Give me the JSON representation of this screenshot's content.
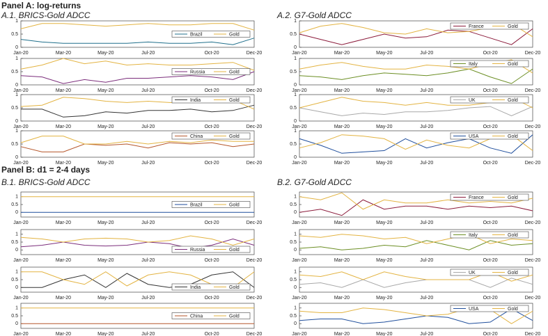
{
  "headings": {
    "panel_a": "Panel A: log-returns",
    "a1": "A.1. BRICS-Gold ADCC",
    "a2": "A.2. G7-Gold ADCC",
    "panel_b": "Panel B: d1 = 2-4 days",
    "b1": "B.1. BRICS-Gold ADCC",
    "b2": "B.2. G7-Gold ADCC"
  },
  "chart_data": [
    {
      "type": "line",
      "categories": [
        "Jan-20",
        null,
        "Mar-20",
        null,
        "May-20",
        null,
        "Jul-20",
        null,
        null,
        "Oct-20",
        null,
        "Dec-20"
      ],
      "ylim": [
        0,
        1
      ],
      "yticks": [
        0,
        0.5,
        1
      ],
      "legend": "center right",
      "series": [
        {
          "name": "Brazil",
          "color": "#1f6f8b",
          "values": [
            0.3,
            0.2,
            0.15,
            0.15,
            0.15,
            0.15,
            0.2,
            0.15,
            0.15,
            0.2,
            0.1,
            0.35
          ]
        },
        {
          "name": "Gold",
          "color": "#e3b341",
          "values": [
            0.7,
            0.9,
            0.9,
            0.85,
            0.8,
            0.85,
            0.9,
            0.85,
            0.85,
            0.9,
            0.9,
            0.65
          ]
        }
      ]
    },
    {
      "type": "line",
      "categories": [
        "Jan-20",
        null,
        "Mar-20",
        null,
        "May-20",
        null,
        "Jul-20",
        null,
        null,
        "Oct-20",
        null,
        "Dec-20"
      ],
      "ylim": [
        0,
        1
      ],
      "yticks": [
        0,
        0.5,
        1
      ],
      "legend": "center right",
      "series": [
        {
          "name": "Russia",
          "color": "#7b2d7b",
          "values": [
            0.35,
            0.3,
            0.05,
            0.2,
            0.1,
            0.25,
            0.25,
            0.3,
            0.35,
            0.3,
            0.2,
            0.5
          ]
        },
        {
          "name": "Gold",
          "color": "#e3b341",
          "values": [
            0.6,
            0.75,
            1.0,
            0.8,
            0.9,
            0.75,
            0.8,
            0.75,
            0.75,
            0.8,
            0.85,
            0.55
          ]
        }
      ]
    },
    {
      "type": "line",
      "categories": [
        "Jan-20",
        null,
        "Mar-20",
        null,
        "May-20",
        null,
        "Jul-20",
        null,
        null,
        "Oct-20",
        null,
        "Dec-20"
      ],
      "ylim": [
        0,
        1
      ],
      "yticks": [
        0,
        0.5,
        1
      ],
      "legend": "upper right",
      "series": [
        {
          "name": "India",
          "color": "#333333",
          "values": [
            0.45,
            0.45,
            0.15,
            0.2,
            0.35,
            0.3,
            0.4,
            0.4,
            0.45,
            0.35,
            0.4,
            0.6
          ]
        },
        {
          "name": "Gold",
          "color": "#e3b341",
          "values": [
            0.55,
            0.6,
            0.9,
            0.85,
            0.75,
            0.7,
            0.75,
            0.7,
            0.7,
            0.8,
            0.8,
            0.45
          ]
        }
      ]
    },
    {
      "type": "line",
      "categories": [
        "Jan-20",
        null,
        "Mar-20",
        null,
        "May-20",
        null,
        "Jul-20",
        null,
        null,
        "Oct-20",
        null,
        "Dec-20"
      ],
      "ylim": [
        0,
        1
      ],
      "yticks": [
        0,
        0.5,
        1
      ],
      "legend": "upper right",
      "series": [
        {
          "name": "China",
          "color": "#b5562a",
          "values": [
            0.4,
            0.2,
            0.2,
            0.5,
            0.45,
            0.5,
            0.35,
            0.55,
            0.5,
            0.55,
            0.4,
            0.5
          ]
        },
        {
          "name": "Gold",
          "color": "#e3b341",
          "values": [
            0.55,
            0.8,
            0.8,
            0.5,
            0.5,
            0.6,
            0.5,
            0.6,
            0.55,
            0.65,
            0.6,
            0.6
          ]
        }
      ]
    },
    {
      "type": "line",
      "categories": [
        "Jan-20",
        null,
        "Mar-20",
        null,
        "May-20",
        null,
        "Jul-20",
        null,
        null,
        "Oct-20",
        null,
        "Dec-20"
      ],
      "ylim": [
        0,
        1
      ],
      "yticks": [
        0,
        0.5,
        1
      ],
      "legend": "upper right",
      "series": [
        {
          "name": "France",
          "color": "#8b1a3a",
          "values": [
            0.5,
            0.3,
            0.1,
            0.3,
            0.5,
            0.35,
            0.4,
            0.65,
            0.6,
            0.35,
            0.1,
            0.7
          ]
        },
        {
          "name": "Gold",
          "color": "#e3b341",
          "values": [
            0.55,
            0.8,
            0.9,
            0.75,
            0.55,
            0.5,
            0.7,
            0.55,
            0.6,
            0.75,
            0.9,
            0.4
          ]
        }
      ]
    },
    {
      "type": "line",
      "categories": [
        "Jan-20",
        null,
        "Mar-20",
        null,
        "May-20",
        null,
        "Jul-20",
        null,
        null,
        "Oct-20",
        null,
        "Dec-20"
      ],
      "ylim": [
        0,
        1
      ],
      "yticks": [
        0,
        0.5,
        1
      ],
      "legend": "upper right",
      "series": [
        {
          "name": "Italy",
          "color": "#6b8e23",
          "values": [
            0.35,
            0.3,
            0.2,
            0.35,
            0.45,
            0.4,
            0.35,
            0.45,
            0.6,
            0.3,
            0.05,
            0.6
          ]
        },
        {
          "name": "Gold",
          "color": "#e3b341",
          "values": [
            0.6,
            0.75,
            0.85,
            0.7,
            0.6,
            0.6,
            0.75,
            0.7,
            0.6,
            0.8,
            0.95,
            0.45
          ]
        }
      ]
    },
    {
      "type": "line",
      "categories": [
        "Jan-20",
        null,
        "Mar-20",
        null,
        "May-20",
        null,
        "Jul-20",
        null,
        null,
        "Oct-20",
        null,
        "Dec-20"
      ],
      "ylim": [
        0,
        1
      ],
      "yticks": [
        0,
        0.5,
        1
      ],
      "legend": "upper right",
      "series": [
        {
          "name": "UK",
          "color": "#a8a8a8",
          "values": [
            0.5,
            0.35,
            0.2,
            0.3,
            0.25,
            0.35,
            0.35,
            0.4,
            0.5,
            0.55,
            0.2,
            0.55
          ]
        },
        {
          "name": "Gold",
          "color": "#e3b341",
          "values": [
            0.5,
            0.7,
            0.9,
            0.75,
            0.7,
            0.6,
            0.7,
            0.6,
            0.6,
            0.7,
            0.9,
            0.5
          ]
        }
      ]
    },
    {
      "type": "line",
      "categories": [
        "Jan-20",
        null,
        "Mar-20",
        null,
        "May-20",
        null,
        "Jul-20",
        null,
        null,
        "Oct-20",
        null,
        "Dec-20"
      ],
      "ylim": [
        0,
        1
      ],
      "yticks": [
        0,
        0.5,
        1
      ],
      "legend": "upper right",
      "series": [
        {
          "name": "USA",
          "color": "#1f4e9c",
          "values": [
            0.7,
            0.45,
            0.15,
            0.2,
            0.25,
            0.7,
            0.35,
            0.55,
            0.7,
            0.35,
            0.15,
            0.85
          ]
        },
        {
          "name": "Gold",
          "color": "#e3b341",
          "values": [
            0.35,
            0.55,
            0.85,
            0.8,
            0.7,
            0.3,
            0.65,
            0.45,
            0.35,
            0.7,
            0.85,
            0.25
          ]
        }
      ]
    },
    {
      "type": "line",
      "categories": [
        "Jan-20",
        null,
        "Mar-20",
        null,
        "May-20",
        null,
        "Jul-20",
        null,
        null,
        "Oct-20",
        null,
        "Dec-20"
      ],
      "ylim": [
        -0.3,
        1.3
      ],
      "yticks": [
        0,
        0.5,
        1
      ],
      "legend": "center right",
      "series": [
        {
          "name": "Brazil",
          "color": "#1f4e9c",
          "values": [
            0,
            0,
            0,
            0,
            0,
            0,
            0,
            0,
            0,
            0,
            0,
            0
          ]
        },
        {
          "name": "Gold",
          "color": "#e3b341",
          "values": [
            1,
            1,
            1,
            1,
            1,
            1,
            1,
            1,
            1,
            1,
            1,
            1
          ]
        }
      ]
    },
    {
      "type": "line",
      "categories": [
        "Jan-20",
        null,
        "Mar-20",
        null,
        "May-20",
        null,
        "Jul-20",
        null,
        null,
        "Oct-20",
        null,
        "Dec-20"
      ],
      "ylim": [
        -0.3,
        1.3
      ],
      "yticks": [
        0,
        0.5,
        1
      ],
      "legend": "lower right",
      "series": [
        {
          "name": "Russia",
          "color": "#7b2d7b",
          "values": [
            0.2,
            0.3,
            0.5,
            0.3,
            0.25,
            0.3,
            0.5,
            0.4,
            0.1,
            0.3,
            0.7,
            0.3
          ]
        },
        {
          "name": "Gold",
          "color": "#e3b341",
          "values": [
            0.8,
            0.7,
            0.5,
            0.7,
            0.75,
            0.7,
            0.5,
            0.6,
            0.9,
            0.7,
            0.3,
            0.7
          ]
        }
      ]
    },
    {
      "type": "line",
      "categories": [
        "Jan-20",
        null,
        "Mar-20",
        null,
        "May-20",
        null,
        "Jul-20",
        null,
        null,
        "Oct-20",
        null,
        "Dec-20"
      ],
      "ylim": [
        -0.3,
        1.3
      ],
      "yticks": [
        0,
        0.5,
        1
      ],
      "legend": "lower right",
      "series": [
        {
          "name": "India",
          "color": "#333333",
          "values": [
            0,
            0,
            0.5,
            0.8,
            0,
            0.9,
            0.2,
            0,
            0.2,
            0.8,
            1,
            0
          ]
        },
        {
          "name": "Gold",
          "color": "#e3b341",
          "values": [
            1,
            1,
            0.5,
            0.2,
            1,
            0.1,
            0.8,
            1,
            0.8,
            0.2,
            0,
            1
          ]
        }
      ]
    },
    {
      "type": "line",
      "categories": [
        "Jan-20",
        null,
        "Mar-20",
        null,
        "May-20",
        null,
        "Jul-20",
        null,
        null,
        "Oct-20",
        null,
        "Dec-20"
      ],
      "ylim": [
        -0.3,
        1.3
      ],
      "yticks": [
        0,
        0.5,
        1
      ],
      "legend": "center right",
      "series": [
        {
          "name": "China",
          "color": "#b5562a",
          "values": [
            0,
            0,
            0,
            0,
            0,
            0,
            0,
            0,
            0,
            0,
            0,
            0
          ]
        },
        {
          "name": "Gold",
          "color": "#e3b341",
          "values": [
            1,
            1,
            1,
            1,
            1,
            1,
            1,
            1,
            1,
            1,
            1,
            1
          ]
        }
      ]
    },
    {
      "type": "line",
      "categories": [
        "Jan-20",
        null,
        "Mar-20",
        null,
        "May-20",
        null,
        "Jul-20",
        null,
        null,
        "Oct-20",
        null,
        "Dec-20"
      ],
      "ylim": [
        -0.3,
        1.3
      ],
      "yticks": [
        0,
        0.5,
        1
      ],
      "legend": "upper right",
      "series": [
        {
          "name": "France",
          "color": "#8b1a3a",
          "values": [
            0,
            0.2,
            -0.2,
            0.8,
            0.2,
            0.4,
            0.4,
            0.2,
            0.4,
            0.3,
            0.4,
            0.1
          ]
        },
        {
          "name": "Gold",
          "color": "#e3b341",
          "values": [
            1,
            0.8,
            1.25,
            0.2,
            0.8,
            0.6,
            0.6,
            0.8,
            0.6,
            0.7,
            0.6,
            0.9
          ]
        }
      ]
    },
    {
      "type": "line",
      "categories": [
        "Jan-20",
        null,
        "Mar-20",
        null,
        "May-20",
        null,
        "Jul-20",
        null,
        null,
        "Oct-20",
        null,
        "Dec-20"
      ],
      "ylim": [
        -0.3,
        1.3
      ],
      "yticks": [
        0,
        0.5,
        1
      ],
      "legend": "upper right",
      "series": [
        {
          "name": "Italy",
          "color": "#6b8e23",
          "values": [
            0.1,
            0.2,
            0,
            0.1,
            0.3,
            0.2,
            0.6,
            0.3,
            0,
            0.6,
            0.3,
            0.4
          ]
        },
        {
          "name": "Gold",
          "color": "#e3b341",
          "values": [
            0.9,
            0.8,
            1,
            0.9,
            0.7,
            0.8,
            0.4,
            0.7,
            1,
            0.4,
            0.7,
            0.6
          ]
        }
      ]
    },
    {
      "type": "line",
      "categories": [
        "Jan-20",
        null,
        "Mar-20",
        null,
        "May-20",
        null,
        "Jul-20",
        null,
        null,
        "Oct-20",
        null,
        "Dec-20"
      ],
      "ylim": [
        -0.3,
        1.3
      ],
      "yticks": [
        0,
        0.5,
        1
      ],
      "legend": "upper right",
      "series": [
        {
          "name": "UK",
          "color": "#a8a8a8",
          "values": [
            0.2,
            0.3,
            0,
            0.5,
            0,
            0.3,
            0.5,
            0.5,
            0.5,
            0,
            0.6,
            0.2
          ]
        },
        {
          "name": "Gold",
          "color": "#e3b341",
          "values": [
            0.8,
            0.7,
            1,
            0.5,
            1,
            0.7,
            0.5,
            0.5,
            0.5,
            1,
            0.4,
            0.8
          ]
        }
      ]
    },
    {
      "type": "line",
      "categories": [
        "Jan-20",
        null,
        "Mar-20",
        null,
        "May-20",
        null,
        "Jul-20",
        null,
        null,
        "Oct-20",
        null,
        "Dec-20"
      ],
      "ylim": [
        -0.3,
        1.3
      ],
      "yticks": [
        0,
        0.5,
        1
      ],
      "legend": "upper right",
      "series": [
        {
          "name": "USA",
          "color": "#1f4e9c",
          "values": [
            0.2,
            0.3,
            0.3,
            0,
            0.1,
            0.3,
            0.5,
            0.4,
            0,
            0.1,
            0.95,
            0.2
          ]
        },
        {
          "name": "Gold",
          "color": "#e3b341",
          "values": [
            0.8,
            0.7,
            0.7,
            1,
            0.9,
            0.7,
            0.5,
            0.6,
            1,
            0.9,
            0,
            0.8
          ]
        }
      ]
    }
  ]
}
